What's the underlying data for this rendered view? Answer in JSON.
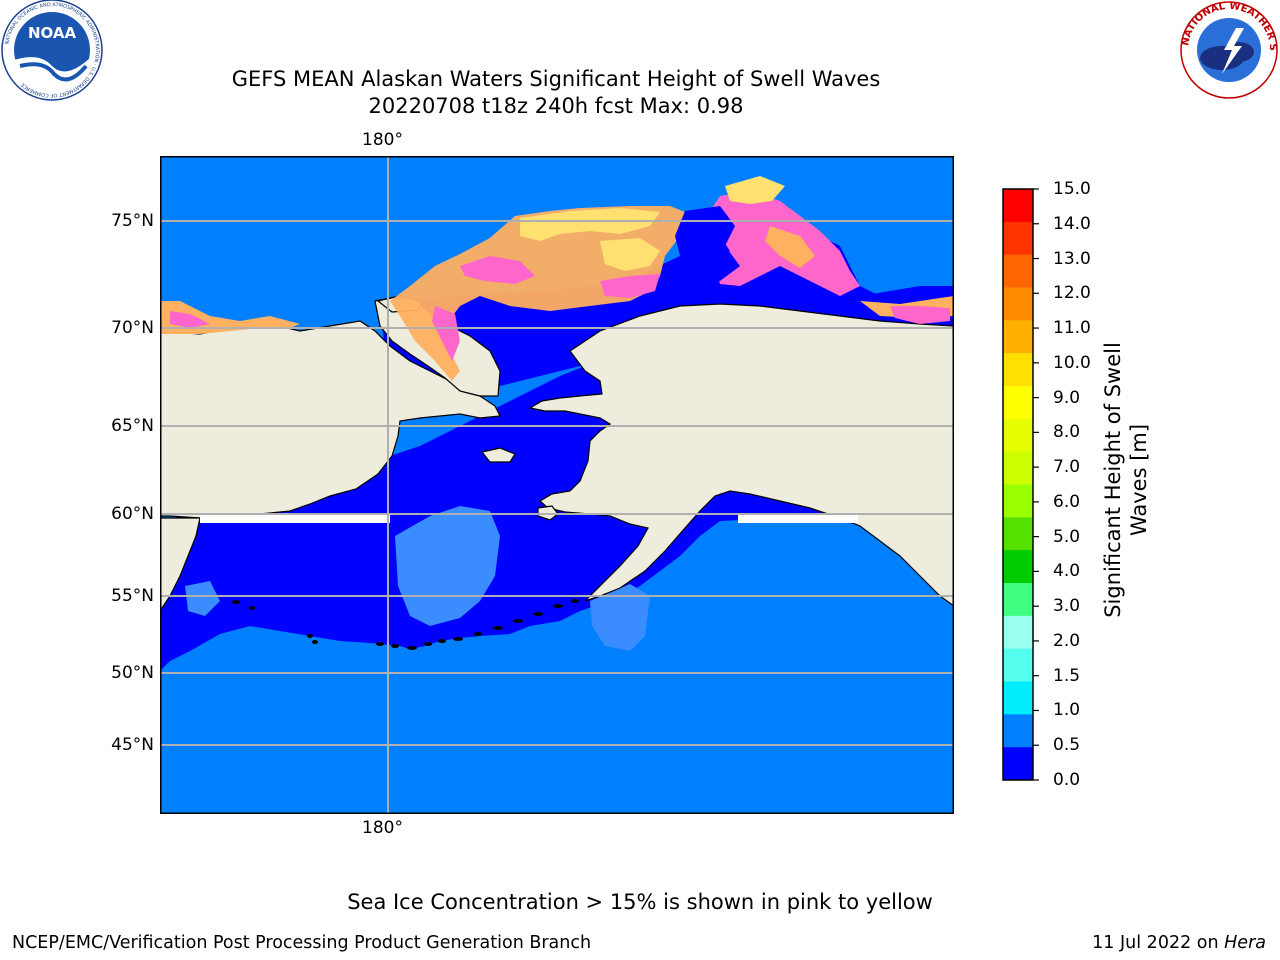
{
  "header": {
    "title_line1": "GEFS MEAN Alaskan Waters Significant Height of Swell Waves",
    "title_line2": "20220708 t18z 240h fcst   Max: 0.98"
  },
  "logos": {
    "noaa": {
      "text": "NOAA",
      "ring_text": "NATIONAL OCEANIC AND ATMOSPHERIC ADMINISTRATION · U.S. DEPARTMENT OF COMMERCE"
    },
    "nws": {
      "ring_text": "NATIONAL WEATHER SERVICE"
    }
  },
  "map": {
    "lon_label_top": "180°",
    "lon_label_bottom": "180°",
    "lat_labels": [
      "75°N",
      "70°N",
      "65°N",
      "60°N",
      "55°N",
      "50°N",
      "45°N"
    ],
    "colors": {
      "ocean_deep": "#0080ff",
      "ocean_shallow": "#0000ff",
      "land": "#eeecdc",
      "ice_pink": "#ff66cc",
      "ice_orange": "#ffb060",
      "ice_yellow": "#ffe070",
      "grid": "#b0b0b0"
    }
  },
  "colorbar": {
    "label_line1": "Significant Height of Swell",
    "label_line2": "Waves [m]",
    "ticks": [
      "15.0",
      "14.0",
      "13.0",
      "12.0",
      "11.0",
      "10.0",
      "9.0",
      "8.0",
      "7.0",
      "6.0",
      "5.0",
      "4.0",
      "3.0",
      "2.0",
      "1.5",
      "1.0",
      "0.5",
      "0.0"
    ],
    "colors": [
      "#ff0000",
      "#ff3300",
      "#ff6600",
      "#ff8c00",
      "#ffb000",
      "#ffe000",
      "#ffff00",
      "#e6ff00",
      "#ccff00",
      "#99ff00",
      "#55e000",
      "#00cc00",
      "#40ff80",
      "#99ffee",
      "#55ffee",
      "#00eeff",
      "#0080ff",
      "#0000ff"
    ]
  },
  "footer": {
    "note": "Sea Ice Concentration > 15% is shown in pink to yellow",
    "left": "NCEP/EMC/Verification Post Processing Product Generation Branch",
    "right_prefix": "11 Jul 2022 on ",
    "right_italic": "Hera"
  }
}
